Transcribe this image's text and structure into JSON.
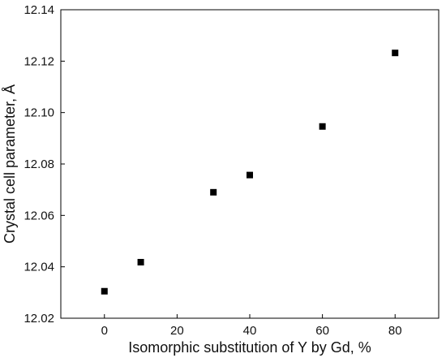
{
  "chart_data": {
    "type": "scatter",
    "title": "",
    "xlabel": "Isomorphic substitution of Y by Gd, %",
    "ylabel": "Crystal cell parameter, Å",
    "xlim": [
      -12,
      92
    ],
    "ylim": [
      12.02,
      12.14
    ],
    "x_ticks": [
      0,
      20,
      40,
      60,
      80
    ],
    "x_tick_labels": [
      "0",
      "20",
      "40",
      "60",
      "80"
    ],
    "y_ticks": [
      12.02,
      12.04,
      12.06,
      12.08,
      12.1,
      12.12,
      12.14
    ],
    "y_tick_labels": [
      "12.02",
      "12.04",
      "12.06",
      "12.08",
      "12.10",
      "12.12",
      "12.14"
    ],
    "grid": false,
    "legend": "none",
    "marker": "square",
    "marker_color": "#000000",
    "points": [
      {
        "x": 0,
        "y": 12.0305
      },
      {
        "x": 10,
        "y": 12.0418
      },
      {
        "x": 30,
        "y": 12.069
      },
      {
        "x": 40,
        "y": 12.0757
      },
      {
        "x": 60,
        "y": 12.0946
      },
      {
        "x": 80,
        "y": 12.1232
      }
    ]
  }
}
